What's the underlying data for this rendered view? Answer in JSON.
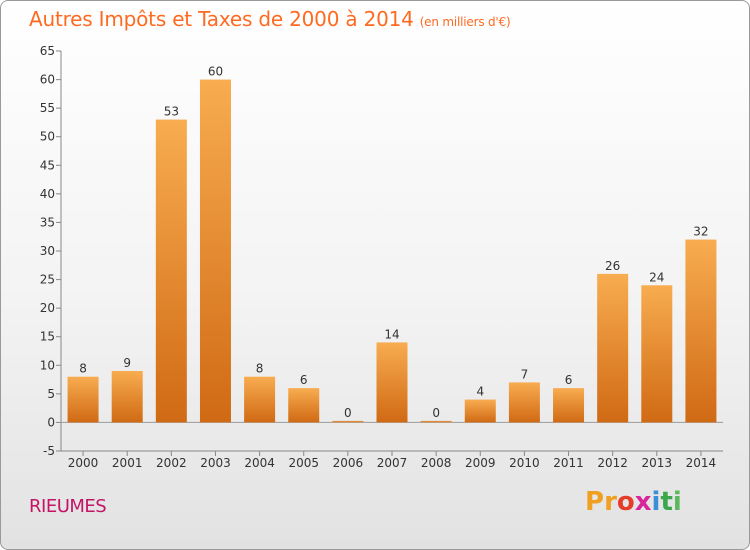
{
  "header": {
    "title": "Autres Impôts et Taxes de 2000 à 2014",
    "unit": "(en milliers d'€)"
  },
  "footer": {
    "commune": "RIEUMES",
    "logo_letters": [
      "P",
      "r",
      "o",
      "x",
      "i",
      "t",
      "i"
    ],
    "logo_colors": [
      "#f0a020",
      "#f0a020",
      "#e53d2a",
      "#d8269a",
      "#3a8fd8",
      "#3aa84a",
      "#5cb85c"
    ]
  },
  "colors": {
    "bar_light": "#f8ac50",
    "bar_dark": "#d06a14",
    "axis": "#888888",
    "grid": "#cccccc"
  },
  "chart_data": {
    "type": "bar",
    "title": "Autres Impôts et Taxes de 2000 à 2014",
    "subtitle": "(en milliers d'€)",
    "categories": [
      "2000",
      "2001",
      "2002",
      "2003",
      "2004",
      "2005",
      "2006",
      "2007",
      "2008",
      "2009",
      "2010",
      "2011",
      "2012",
      "2013",
      "2014"
    ],
    "values": [
      8,
      9,
      53,
      60,
      8,
      6,
      0,
      14,
      0,
      4,
      7,
      6,
      26,
      24,
      32
    ],
    "ylim": [
      -5,
      65
    ],
    "yticks": [
      -5,
      0,
      5,
      10,
      15,
      20,
      25,
      30,
      35,
      40,
      45,
      50,
      55,
      60,
      65
    ],
    "grid": false,
    "legend": "none"
  }
}
